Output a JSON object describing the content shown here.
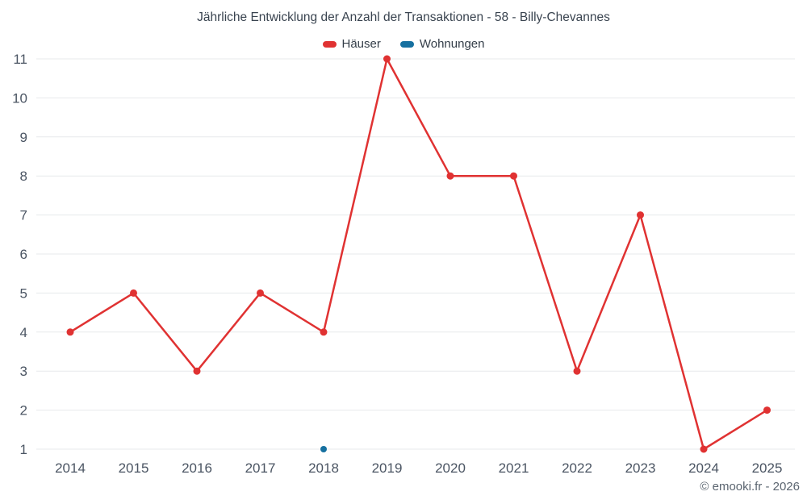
{
  "title": "Jährliche Entwicklung der Anzahl der Transaktionen - 58 - Billy-Chevannes",
  "footer": "© emooki.fr - 2026",
  "legend": [
    {
      "label": "Häuser",
      "color": "#e03232"
    },
    {
      "label": "Wohnungen",
      "color": "#1670a0"
    }
  ],
  "chart_data": {
    "type": "line",
    "title": "Jährliche Entwicklung der Anzahl der Transaktionen - 58 - Billy-Chevannes",
    "x": [
      2014,
      2015,
      2016,
      2017,
      2018,
      2019,
      2020,
      2021,
      2022,
      2023,
      2024,
      2025
    ],
    "series": [
      {
        "name": "Häuser",
        "color": "#e03232",
        "values": [
          4,
          5,
          3,
          5,
          4,
          11,
          8,
          8,
          3,
          7,
          1,
          2
        ]
      },
      {
        "name": "Wohnungen",
        "color": "#1670a0",
        "values": [
          null,
          null,
          null,
          null,
          1,
          null,
          null,
          null,
          null,
          null,
          null,
          null
        ]
      }
    ],
    "xlabel": "",
    "ylabel": "",
    "ylim": [
      1,
      11
    ],
    "yticks": [
      1,
      2,
      3,
      4,
      5,
      6,
      7,
      8,
      9,
      10,
      11
    ],
    "grid": true,
    "legend_position": "top"
  }
}
